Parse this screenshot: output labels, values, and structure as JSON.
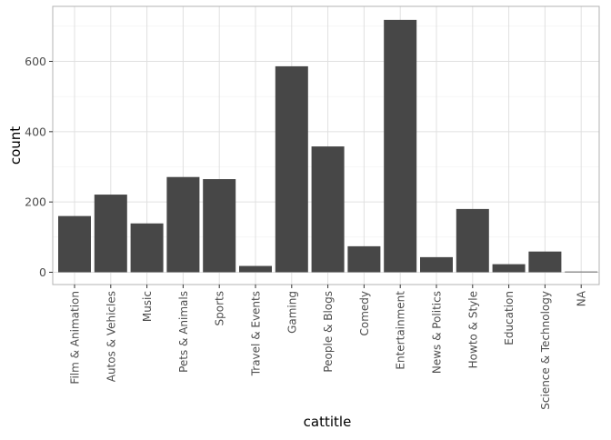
{
  "chart_data": {
    "type": "bar",
    "title": "",
    "xlabel": "cattitle",
    "ylabel": "count",
    "ylim": [
      0,
      740
    ],
    "yticks": [
      0,
      200,
      400,
      600
    ],
    "grid": true,
    "legend": "none",
    "bar_color": "#474747",
    "categories": [
      "Film & Animation",
      "Autos & Vehicles",
      "Music",
      "Pets & Animals",
      "Sports",
      "Travel & Events",
      "Gaming",
      "People & Blogs",
      "Comedy",
      "Entertainment",
      "News & Politics",
      "Howto & Style",
      "Education",
      "Science & Technology",
      "NA"
    ],
    "values": [
      160,
      221,
      139,
      271,
      265,
      18,
      586,
      358,
      74,
      718,
      43,
      180,
      23,
      59,
      2
    ]
  },
  "colors": {
    "panel_border": "#b3b3b3",
    "grid_major": "#e0e0e0",
    "grid_minor": "#f0f0f0",
    "tick_text": "#4d4d4d",
    "axis_title": "#000000"
  }
}
